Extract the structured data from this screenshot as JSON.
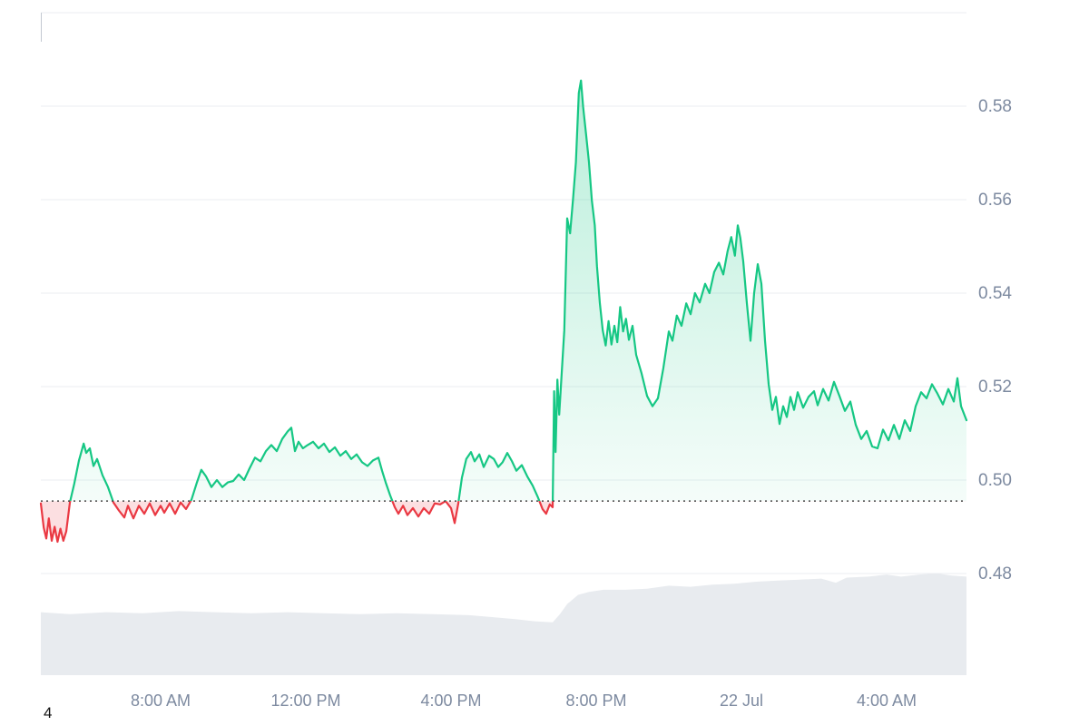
{
  "page": {
    "background": "#ffffff",
    "stray_text": "4"
  },
  "chart_data": {
    "type": "line",
    "title": "",
    "description": "Intraday cryptocurrency price line chart with previous-close dotted baseline, green segments above baseline, red below, and light volume area at bottom",
    "x_unit": "hours since 21 Jul 00:00",
    "x_range": [
      4.7,
      30.2
    ],
    "baseline": 0.4955,
    "y_axis": {
      "min_visible": 0.48,
      "max_visible": 0.6,
      "grid_values": [
        0.6,
        0.58,
        0.56,
        0.54,
        0.52,
        0.5,
        0.48
      ],
      "ticks": [
        {
          "value": 0.58,
          "label": "0.58"
        },
        {
          "value": 0.56,
          "label": "0.56"
        },
        {
          "value": 0.54,
          "label": "0.54"
        },
        {
          "value": 0.52,
          "label": "0.52"
        },
        {
          "value": 0.5,
          "label": "0.50"
        },
        {
          "value": 0.48,
          "label": "0.48"
        }
      ]
    },
    "x_ticks": [
      {
        "pos": 8,
        "label": "8:00 AM"
      },
      {
        "pos": 12,
        "label": "12:00 PM"
      },
      {
        "pos": 16,
        "label": "4:00 PM"
      },
      {
        "pos": 20,
        "label": "8:00 PM"
      },
      {
        "pos": 24,
        "label": "22 Jul"
      },
      {
        "pos": 28,
        "label": "4:00 AM"
      }
    ],
    "price_series": [
      [
        4.7,
        0.495
      ],
      [
        4.78,
        0.4898
      ],
      [
        4.85,
        0.4875
      ],
      [
        4.92,
        0.4918
      ],
      [
        5.0,
        0.487
      ],
      [
        5.08,
        0.49
      ],
      [
        5.16,
        0.4868
      ],
      [
        5.24,
        0.4896
      ],
      [
        5.32,
        0.487
      ],
      [
        5.4,
        0.489
      ],
      [
        5.5,
        0.4952
      ],
      [
        5.62,
        0.4992
      ],
      [
        5.75,
        0.5042
      ],
      [
        5.88,
        0.5078
      ],
      [
        5.95,
        0.5058
      ],
      [
        6.05,
        0.5068
      ],
      [
        6.15,
        0.503
      ],
      [
        6.25,
        0.5045
      ],
      [
        6.4,
        0.501
      ],
      [
        6.55,
        0.4985
      ],
      [
        6.7,
        0.4952
      ],
      [
        6.85,
        0.4935
      ],
      [
        7.0,
        0.492
      ],
      [
        7.1,
        0.4945
      ],
      [
        7.25,
        0.4918
      ],
      [
        7.4,
        0.4945
      ],
      [
        7.55,
        0.4928
      ],
      [
        7.7,
        0.495
      ],
      [
        7.85,
        0.4925
      ],
      [
        8.0,
        0.4945
      ],
      [
        8.1,
        0.493
      ],
      [
        8.25,
        0.495
      ],
      [
        8.4,
        0.4928
      ],
      [
        8.55,
        0.4952
      ],
      [
        8.7,
        0.4938
      ],
      [
        8.85,
        0.4958
      ],
      [
        9.0,
        0.4995
      ],
      [
        9.12,
        0.5022
      ],
      [
        9.25,
        0.5008
      ],
      [
        9.4,
        0.4985
      ],
      [
        9.55,
        0.5
      ],
      [
        9.7,
        0.4985
      ],
      [
        9.85,
        0.4995
      ],
      [
        10.0,
        0.4998
      ],
      [
        10.15,
        0.5012
      ],
      [
        10.3,
        0.5
      ],
      [
        10.45,
        0.5025
      ],
      [
        10.6,
        0.5048
      ],
      [
        10.75,
        0.504
      ],
      [
        10.9,
        0.5062
      ],
      [
        11.05,
        0.5075
      ],
      [
        11.2,
        0.5062
      ],
      [
        11.35,
        0.5088
      ],
      [
        11.5,
        0.5104
      ],
      [
        11.6,
        0.5112
      ],
      [
        11.7,
        0.5062
      ],
      [
        11.8,
        0.5082
      ],
      [
        11.92,
        0.5068
      ],
      [
        12.05,
        0.5075
      ],
      [
        12.2,
        0.5082
      ],
      [
        12.35,
        0.5068
      ],
      [
        12.5,
        0.5078
      ],
      [
        12.65,
        0.506
      ],
      [
        12.8,
        0.507
      ],
      [
        12.95,
        0.5052
      ],
      [
        13.1,
        0.5062
      ],
      [
        13.25,
        0.5045
      ],
      [
        13.4,
        0.5055
      ],
      [
        13.55,
        0.5038
      ],
      [
        13.7,
        0.503
      ],
      [
        13.85,
        0.5042
      ],
      [
        14.0,
        0.5048
      ],
      [
        14.1,
        0.502
      ],
      [
        14.2,
        0.4995
      ],
      [
        14.32,
        0.4968
      ],
      [
        14.45,
        0.4942
      ],
      [
        14.55,
        0.4928
      ],
      [
        14.68,
        0.4945
      ],
      [
        14.8,
        0.4925
      ],
      [
        14.95,
        0.494
      ],
      [
        15.1,
        0.4922
      ],
      [
        15.25,
        0.494
      ],
      [
        15.4,
        0.4928
      ],
      [
        15.55,
        0.495
      ],
      [
        15.7,
        0.4948
      ],
      [
        15.85,
        0.4955
      ],
      [
        16.0,
        0.494
      ],
      [
        16.1,
        0.4908
      ],
      [
        16.2,
        0.495
      ],
      [
        16.3,
        0.5005
      ],
      [
        16.42,
        0.5045
      ],
      [
        16.55,
        0.506
      ],
      [
        16.65,
        0.504
      ],
      [
        16.78,
        0.5055
      ],
      [
        16.9,
        0.5028
      ],
      [
        17.05,
        0.5052
      ],
      [
        17.18,
        0.5045
      ],
      [
        17.3,
        0.5028
      ],
      [
        17.42,
        0.5038
      ],
      [
        17.55,
        0.5058
      ],
      [
        17.68,
        0.504
      ],
      [
        17.8,
        0.502
      ],
      [
        17.95,
        0.5032
      ],
      [
        18.1,
        0.5008
      ],
      [
        18.25,
        0.4988
      ],
      [
        18.4,
        0.4962
      ],
      [
        18.52,
        0.4938
      ],
      [
        18.62,
        0.4928
      ],
      [
        18.72,
        0.4948
      ],
      [
        18.8,
        0.4942
      ],
      [
        18.84,
        0.519
      ],
      [
        18.88,
        0.506
      ],
      [
        18.93,
        0.5215
      ],
      [
        18.98,
        0.514
      ],
      [
        19.05,
        0.523
      ],
      [
        19.12,
        0.532
      ],
      [
        19.2,
        0.556
      ],
      [
        19.28,
        0.5528
      ],
      [
        19.36,
        0.56
      ],
      [
        19.44,
        0.568
      ],
      [
        19.52,
        0.5828
      ],
      [
        19.58,
        0.5855
      ],
      [
        19.64,
        0.5798
      ],
      [
        19.72,
        0.574
      ],
      [
        19.8,
        0.568
      ],
      [
        19.88,
        0.5598
      ],
      [
        19.96,
        0.5545
      ],
      [
        20.02,
        0.5458
      ],
      [
        20.1,
        0.5378
      ],
      [
        20.18,
        0.532
      ],
      [
        20.26,
        0.5288
      ],
      [
        20.34,
        0.534
      ],
      [
        20.42,
        0.529
      ],
      [
        20.5,
        0.533
      ],
      [
        20.58,
        0.5295
      ],
      [
        20.66,
        0.537
      ],
      [
        20.74,
        0.5318
      ],
      [
        20.82,
        0.5345
      ],
      [
        20.9,
        0.53
      ],
      [
        21.0,
        0.533
      ],
      [
        21.1,
        0.5268
      ],
      [
        21.25,
        0.5228
      ],
      [
        21.4,
        0.518
      ],
      [
        21.55,
        0.5158
      ],
      [
        21.7,
        0.5175
      ],
      [
        21.85,
        0.524
      ],
      [
        22.0,
        0.5318
      ],
      [
        22.1,
        0.5298
      ],
      [
        22.22,
        0.5352
      ],
      [
        22.35,
        0.533
      ],
      [
        22.48,
        0.5378
      ],
      [
        22.6,
        0.5355
      ],
      [
        22.72,
        0.54
      ],
      [
        22.85,
        0.538
      ],
      [
        23.0,
        0.542
      ],
      [
        23.12,
        0.54
      ],
      [
        23.25,
        0.5445
      ],
      [
        23.38,
        0.5465
      ],
      [
        23.5,
        0.544
      ],
      [
        23.62,
        0.549
      ],
      [
        23.72,
        0.552
      ],
      [
        23.82,
        0.548
      ],
      [
        23.9,
        0.5545
      ],
      [
        23.97,
        0.5518
      ],
      [
        24.05,
        0.5468
      ],
      [
        24.15,
        0.5378
      ],
      [
        24.25,
        0.5298
      ],
      [
        24.35,
        0.54
      ],
      [
        24.45,
        0.5462
      ],
      [
        24.55,
        0.542
      ],
      [
        24.65,
        0.5298
      ],
      [
        24.75,
        0.5205
      ],
      [
        24.85,
        0.515
      ],
      [
        24.95,
        0.5178
      ],
      [
        25.05,
        0.512
      ],
      [
        25.15,
        0.5158
      ],
      [
        25.25,
        0.5135
      ],
      [
        25.35,
        0.5178
      ],
      [
        25.45,
        0.515
      ],
      [
        25.55,
        0.5188
      ],
      [
        25.7,
        0.5155
      ],
      [
        25.85,
        0.5178
      ],
      [
        26.0,
        0.519
      ],
      [
        26.1,
        0.516
      ],
      [
        26.25,
        0.5195
      ],
      [
        26.4,
        0.517
      ],
      [
        26.55,
        0.521
      ],
      [
        26.7,
        0.518
      ],
      [
        26.85,
        0.5148
      ],
      [
        27.0,
        0.5168
      ],
      [
        27.15,
        0.5118
      ],
      [
        27.3,
        0.5088
      ],
      [
        27.45,
        0.5105
      ],
      [
        27.6,
        0.5072
      ],
      [
        27.75,
        0.5068
      ],
      [
        27.9,
        0.5108
      ],
      [
        28.05,
        0.5085
      ],
      [
        28.2,
        0.5118
      ],
      [
        28.35,
        0.5088
      ],
      [
        28.5,
        0.5128
      ],
      [
        28.65,
        0.5105
      ],
      [
        28.8,
        0.5158
      ],
      [
        28.95,
        0.5188
      ],
      [
        29.1,
        0.5175
      ],
      [
        29.25,
        0.5205
      ],
      [
        29.4,
        0.5185
      ],
      [
        29.55,
        0.5162
      ],
      [
        29.7,
        0.5195
      ],
      [
        29.85,
        0.5168
      ],
      [
        29.95,
        0.5218
      ],
      [
        30.05,
        0.5158
      ],
      [
        30.2,
        0.5128
      ]
    ],
    "volume_series": [
      [
        4.7,
        0.62
      ],
      [
        5.5,
        0.6
      ],
      [
        6.5,
        0.62
      ],
      [
        7.5,
        0.61
      ],
      [
        8.5,
        0.63
      ],
      [
        9.5,
        0.62
      ],
      [
        10.5,
        0.61
      ],
      [
        11.5,
        0.62
      ],
      [
        12.5,
        0.61
      ],
      [
        13.5,
        0.6
      ],
      [
        14.5,
        0.61
      ],
      [
        15.5,
        0.6
      ],
      [
        16.5,
        0.59
      ],
      [
        17.2,
        0.57
      ],
      [
        17.8,
        0.55
      ],
      [
        18.3,
        0.53
      ],
      [
        18.8,
        0.52
      ],
      [
        19.0,
        0.6
      ],
      [
        19.2,
        0.7
      ],
      [
        19.5,
        0.79
      ],
      [
        19.8,
        0.82
      ],
      [
        20.2,
        0.84
      ],
      [
        20.8,
        0.84
      ],
      [
        21.4,
        0.85
      ],
      [
        22.0,
        0.88
      ],
      [
        22.6,
        0.87
      ],
      [
        23.2,
        0.89
      ],
      [
        23.8,
        0.9
      ],
      [
        24.4,
        0.92
      ],
      [
        25.0,
        0.93
      ],
      [
        25.6,
        0.94
      ],
      [
        26.2,
        0.95
      ],
      [
        26.6,
        0.91
      ],
      [
        26.9,
        0.96
      ],
      [
        27.5,
        0.97
      ],
      [
        28.0,
        0.99
      ],
      [
        28.4,
        0.97
      ],
      [
        28.9,
        0.99
      ],
      [
        29.4,
        1.0
      ],
      [
        29.8,
        0.98
      ],
      [
        30.2,
        0.97
      ]
    ],
    "colors": {
      "up": "#16c784",
      "down": "#ea3943",
      "up_fill_top_opacity": 0.3,
      "up_fill_bottom_opacity": 0.02,
      "down_fill": "rgba(234,57,67,0.16)",
      "grid": "#ebeef2",
      "axis_text": "#7d8aa0",
      "baseline": "#4a4a4a",
      "volume": "#e8ebef",
      "background": "#ffffff"
    },
    "legend": [],
    "grid": true
  }
}
